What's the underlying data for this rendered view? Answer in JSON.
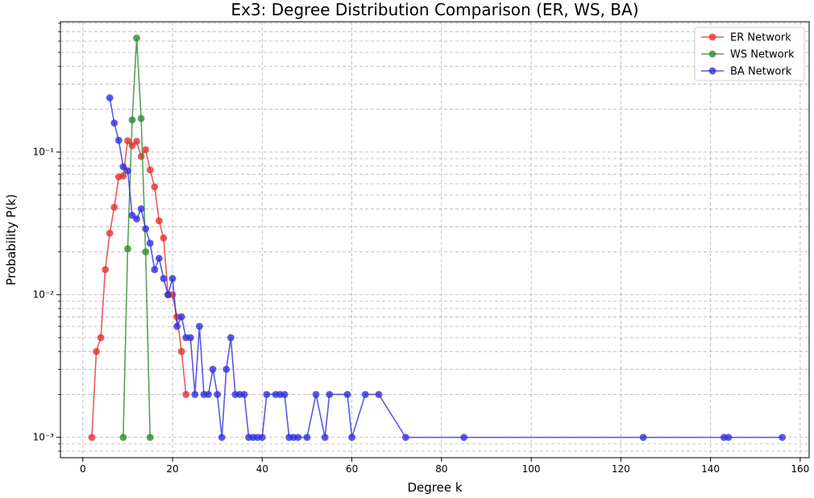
{
  "chart_data": {
    "type": "line",
    "title": "Ex3: Degree Distribution Comparison (ER, WS, BA)",
    "xlabel": "Degree k",
    "ylabel": "Probability P(k)",
    "xlim": [
      -5,
      162
    ],
    "ylim": [
      0.00072,
      0.82
    ],
    "yscale": "log",
    "xticks": [
      0,
      20,
      40,
      60,
      80,
      100,
      120,
      140,
      160
    ],
    "yticks": [
      0.001,
      0.01,
      0.1
    ],
    "ytick_labels": [
      "10⁻³",
      "10⁻²",
      "10⁻¹"
    ],
    "grid": true,
    "legend_position": "top-right",
    "series": [
      {
        "name": "ER Network",
        "color": "#e83030",
        "x": [
          2,
          3,
          4,
          5,
          6,
          7,
          8,
          9,
          10,
          11,
          12,
          13,
          14,
          15,
          16,
          17,
          18,
          19,
          20,
          21,
          22,
          23
        ],
        "y": [
          0.001,
          0.004,
          0.005,
          0.015,
          0.027,
          0.041,
          0.067,
          0.068,
          0.12,
          0.111,
          0.119,
          0.093,
          0.104,
          0.075,
          0.057,
          0.033,
          0.025,
          0.01,
          0.01,
          0.007,
          0.004,
          0.002
        ]
      },
      {
        "name": "WS Network",
        "color": "#2e8b2e",
        "x": [
          9,
          10,
          11,
          12,
          13,
          14,
          15
        ],
        "y": [
          0.001,
          0.021,
          0.168,
          0.63,
          0.172,
          0.02,
          0.001
        ]
      },
      {
        "name": "BA Network",
        "color": "#3030e0",
        "x": [
          6,
          7,
          8,
          9,
          10,
          11,
          12,
          13,
          14,
          15,
          16,
          17,
          18,
          19,
          20,
          21,
          22,
          23,
          24,
          25,
          26,
          27,
          28,
          29,
          30,
          31,
          32,
          33,
          34,
          35,
          36,
          37,
          38,
          39,
          40,
          41,
          43,
          44,
          45,
          46,
          47,
          48,
          50,
          52,
          54,
          55,
          59,
          60,
          63,
          66,
          72,
          85,
          125,
          143,
          144,
          156
        ],
        "y": [
          0.24,
          0.16,
          0.121,
          0.079,
          0.074,
          0.036,
          0.034,
          0.04,
          0.029,
          0.023,
          0.015,
          0.018,
          0.013,
          0.01,
          0.013,
          0.006,
          0.007,
          0.005,
          0.005,
          0.002,
          0.006,
          0.002,
          0.002,
          0.003,
          0.002,
          0.001,
          0.003,
          0.005,
          0.002,
          0.002,
          0.002,
          0.001,
          0.001,
          0.001,
          0.001,
          0.002,
          0.002,
          0.002,
          0.002,
          0.001,
          0.001,
          0.001,
          0.001,
          0.002,
          0.001,
          0.002,
          0.002,
          0.001,
          0.002,
          0.002,
          0.001,
          0.001,
          0.001,
          0.001,
          0.001,
          0.001
        ]
      }
    ]
  }
}
